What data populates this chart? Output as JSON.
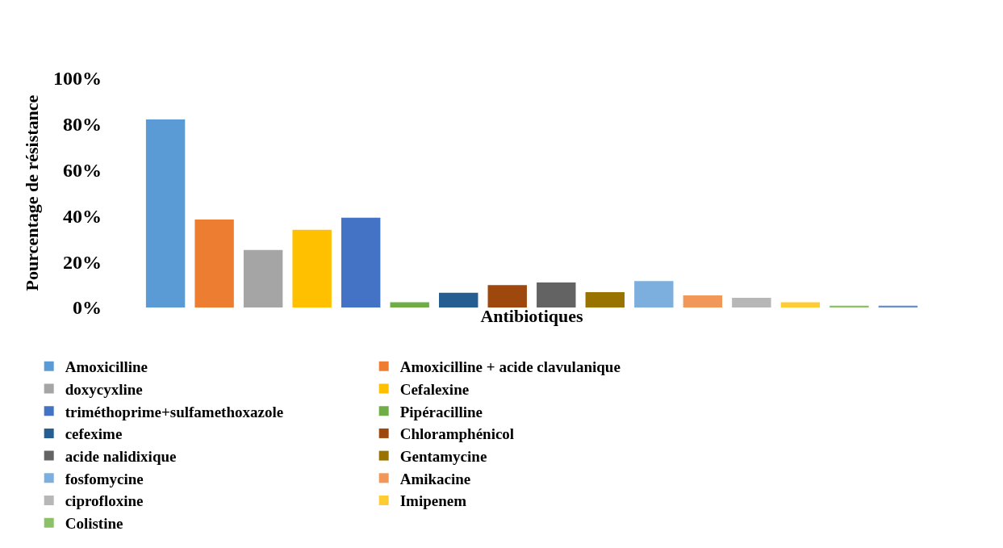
{
  "chart_data": {
    "type": "bar",
    "xlabel": "Antibiotiques",
    "ylabel": "Pourcentage de résistance",
    "categories": [
      null
    ],
    "ylim": [
      0,
      100
    ],
    "yticks": [
      {
        "value": 0,
        "label": "0%"
      },
      {
        "value": 20,
        "label": "20%"
      },
      {
        "value": 40,
        "label": "40%"
      },
      {
        "value": 60,
        "label": "60%"
      },
      {
        "value": 80,
        "label": "80%"
      },
      {
        "value": 100,
        "label": "100%"
      }
    ],
    "legend": "bottom",
    "series": [
      {
        "name": "Amoxicilline",
        "color": "#5b9bd5",
        "values": [
          82
        ]
      },
      {
        "name": "Amoxicilline + acide clavulanique",
        "color": "#ed7d31",
        "values": [
          38.4
        ]
      },
      {
        "name": "doxycyxline",
        "color": "#a5a5a5",
        "values": [
          25.1
        ]
      },
      {
        "name": "Cefalexine",
        "color": "#ffc000",
        "values": [
          33.9
        ]
      },
      {
        "name": "triméthoprime+sulfamethoxazole",
        "color": "#4472c4",
        "values": [
          39.2
        ]
      },
      {
        "name": "Pipéracilline",
        "color": "#70ad47",
        "values": [
          2.3
        ]
      },
      {
        "name": "cefexime",
        "color": "#255e91",
        "values": [
          6.4
        ]
      },
      {
        "name": "Chloramphénicol",
        "color": "#9e480e",
        "values": [
          9.8
        ]
      },
      {
        "name": "acide nalidixique",
        "color": "#636363",
        "values": [
          10.9
        ]
      },
      {
        "name": "Gentamycine",
        "color": "#997300",
        "values": [
          6.7
        ]
      },
      {
        "name": "fosfomycine",
        "color": "#7cafdd",
        "values": [
          11.5
        ]
      },
      {
        "name": "Amikacine",
        "color": "#f1975a",
        "values": [
          5.3
        ]
      },
      {
        "name": "ciprofloxine",
        "color": "#b7b7b7",
        "values": [
          4.2
        ]
      },
      {
        "name": "Imipenem",
        "color": "#ffcd33",
        "values": [
          2.3
        ]
      },
      {
        "name": "Colistine",
        "color": "#8cc168",
        "values": [
          0.8
        ]
      },
      {
        "color": "#698ed0",
        "values": [
          0.8
        ]
      }
    ]
  }
}
